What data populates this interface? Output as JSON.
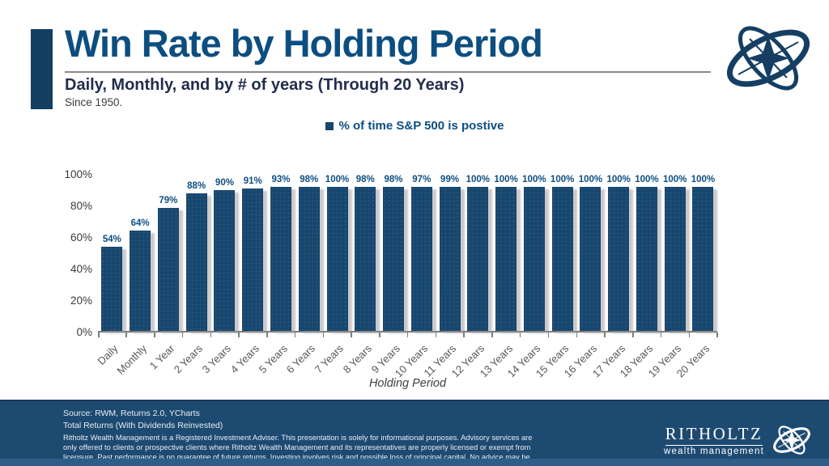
{
  "header": {
    "title": "Win Rate by Holding Period",
    "subtitle": "Daily, Monthly, and by # of years (Through 20 Years)",
    "since": "Since 1950."
  },
  "legend": {
    "label": "% of time S&P 500 is postive"
  },
  "chart_data": {
    "type": "bar",
    "title": "Win Rate by Holding Period",
    "categories": [
      "Daily",
      "Monthly",
      "1 Year",
      "2 Years",
      "3 Years",
      "4 Years",
      "5 Years",
      "6 Years",
      "7 Years",
      "8 Years",
      "9 Years",
      "10 Years",
      "11 Years",
      "12 Years",
      "13 Years",
      "14 Years",
      "15 Years",
      "16 Years",
      "17 Years",
      "18 Years",
      "19 Years",
      "20 Years"
    ],
    "values": [
      54,
      64,
      79,
      88,
      90,
      91,
      93,
      98,
      100,
      98,
      98,
      97,
      99,
      100,
      100,
      100,
      100,
      100,
      100,
      100,
      100,
      100
    ],
    "value_label_suffix": "%",
    "xlabel": "Holding Period",
    "ylabel": "",
    "ylim": [
      0,
      100
    ],
    "yticks": [
      0,
      20,
      40,
      60,
      80,
      100
    ],
    "legend": [
      "% of time S&P 500 is postive"
    ],
    "legend_position": "top-center",
    "grid": false,
    "bar_color": "#17476e"
  },
  "footer": {
    "source_line1": "Source: RWM, Returns 2.0, YCharts",
    "source_line2": "Total Returns (With Dividends Reinvested)",
    "disclaimer": "Ritholtz Wealth Management is a Registered Investment Adviser. This presentation is solely for informational purposes. Advisory services are only offered to clients or prospective clients where Ritholtz Wealth Management and its representatives are properly licensed or exempt from licensure. Past performance is no guarantee of future returns. Investing involves risk and possible loss of principal capital. No advice may be rendered by Ritholtz Wealth Management unless a client service agreement is in place.",
    "brand": {
      "name": "RITHOLTZ",
      "tagline": "wealth management"
    }
  },
  "colors": {
    "title_blue": "#0d4e81",
    "subtitle_navy": "#222d4d",
    "bar_fill": "#17476e",
    "accent_bar": "#153e63",
    "footer_bg": "#1d4a71",
    "footer_strip": "#2e5e88",
    "axis_gray": "#7d7d7d"
  }
}
